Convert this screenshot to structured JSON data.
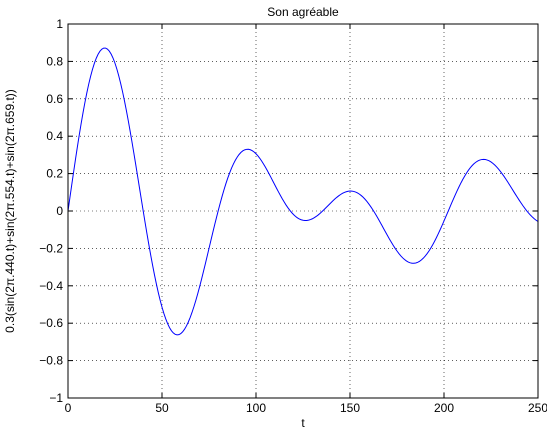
{
  "chart_data": {
    "type": "line",
    "title": "Son agréable",
    "xlabel": "t",
    "ylabel": "0.3(sin(2π.440.t)+sin(2π.554.t)+sin(2π.659.t))",
    "xlim": [
      0,
      250
    ],
    "ylim": [
      -1,
      1
    ],
    "xticks": [
      0,
      50,
      100,
      150,
      200,
      250
    ],
    "yticks": [
      -1,
      -0.8,
      -0.6,
      -0.4,
      -0.2,
      0,
      0.2,
      0.4,
      0.6,
      0.8,
      1
    ],
    "xtick_labels": [
      "0",
      "50",
      "100",
      "150",
      "200",
      "250"
    ],
    "ytick_labels": [
      "−1",
      "−0.8",
      "−0.6",
      "−0.4",
      "−0.2",
      "0",
      "0.2",
      "0.4",
      "0.6",
      "0.8",
      "1"
    ],
    "grid": true,
    "grid_style": "dotted",
    "series": [
      {
        "color": "#0000ff",
        "expression": "0.3*(sin(2*pi*440*t/44100)+sin(2*pi*554*t/44100)+sin(2*pi*659*t/44100))",
        "t_samples": "0..250 step 1"
      }
    ]
  }
}
